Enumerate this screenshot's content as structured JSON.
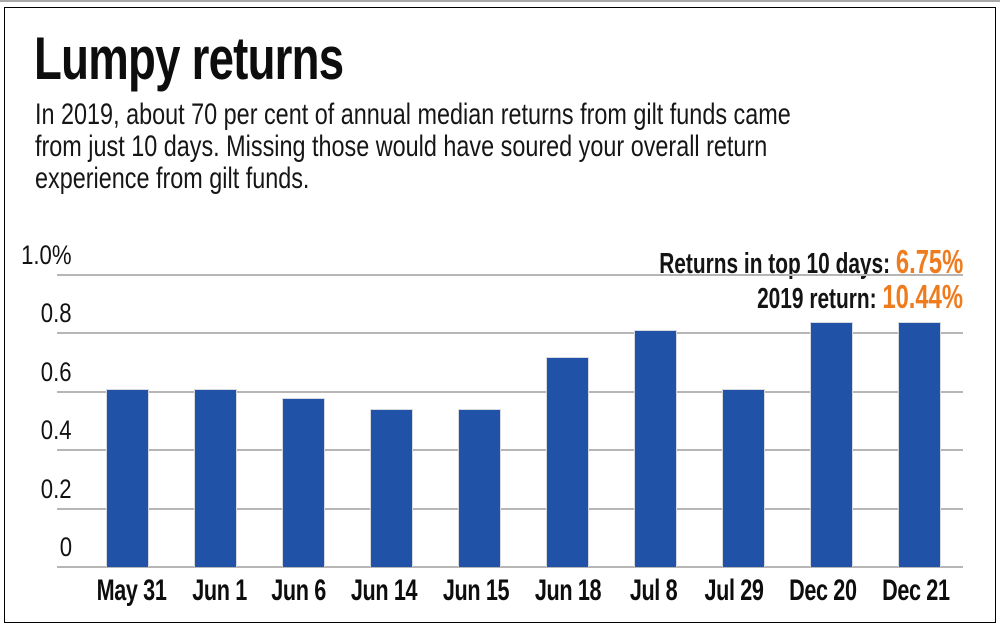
{
  "chart_data": {
    "type": "bar",
    "title": "Lumpy returns",
    "subtitle_lines": [
      "In 2019, about 70 per cent of annual median returns from gilt funds came",
      "from just 10 days. Missing those would have soured your overall return",
      "experience from gilt funds."
    ],
    "categories": [
      "May 31",
      "Jun 1",
      "Jun 6",
      "Jun 14",
      "Jun 15",
      "Jun 18",
      "Jul 8",
      "Jul 29",
      "Dec 20",
      "Dec 21"
    ],
    "values": [
      0.61,
      0.61,
      0.58,
      0.54,
      0.54,
      0.72,
      0.81,
      0.61,
      0.84,
      0.84
    ],
    "unit": "%",
    "xlabel": "",
    "ylabel": "",
    "ylim": [
      0,
      1.0
    ],
    "y_ticks": [
      "1.0%",
      "0.8",
      "0.6",
      "0.4",
      "0.2",
      "0"
    ],
    "y_tick_values": [
      1.0,
      0.8,
      0.6,
      0.4,
      0.2,
      0
    ],
    "grid": true,
    "legend_position": "none",
    "annotations": [
      {
        "label": "Returns in top 10 days:",
        "value": "6.75%"
      },
      {
        "label": "2019 return:",
        "value": "10.44%"
      }
    ],
    "colors": {
      "bar": "#2052a8",
      "accent": "#ee7c1f",
      "grid": "#b6b6b6",
      "text": "#111111"
    }
  }
}
